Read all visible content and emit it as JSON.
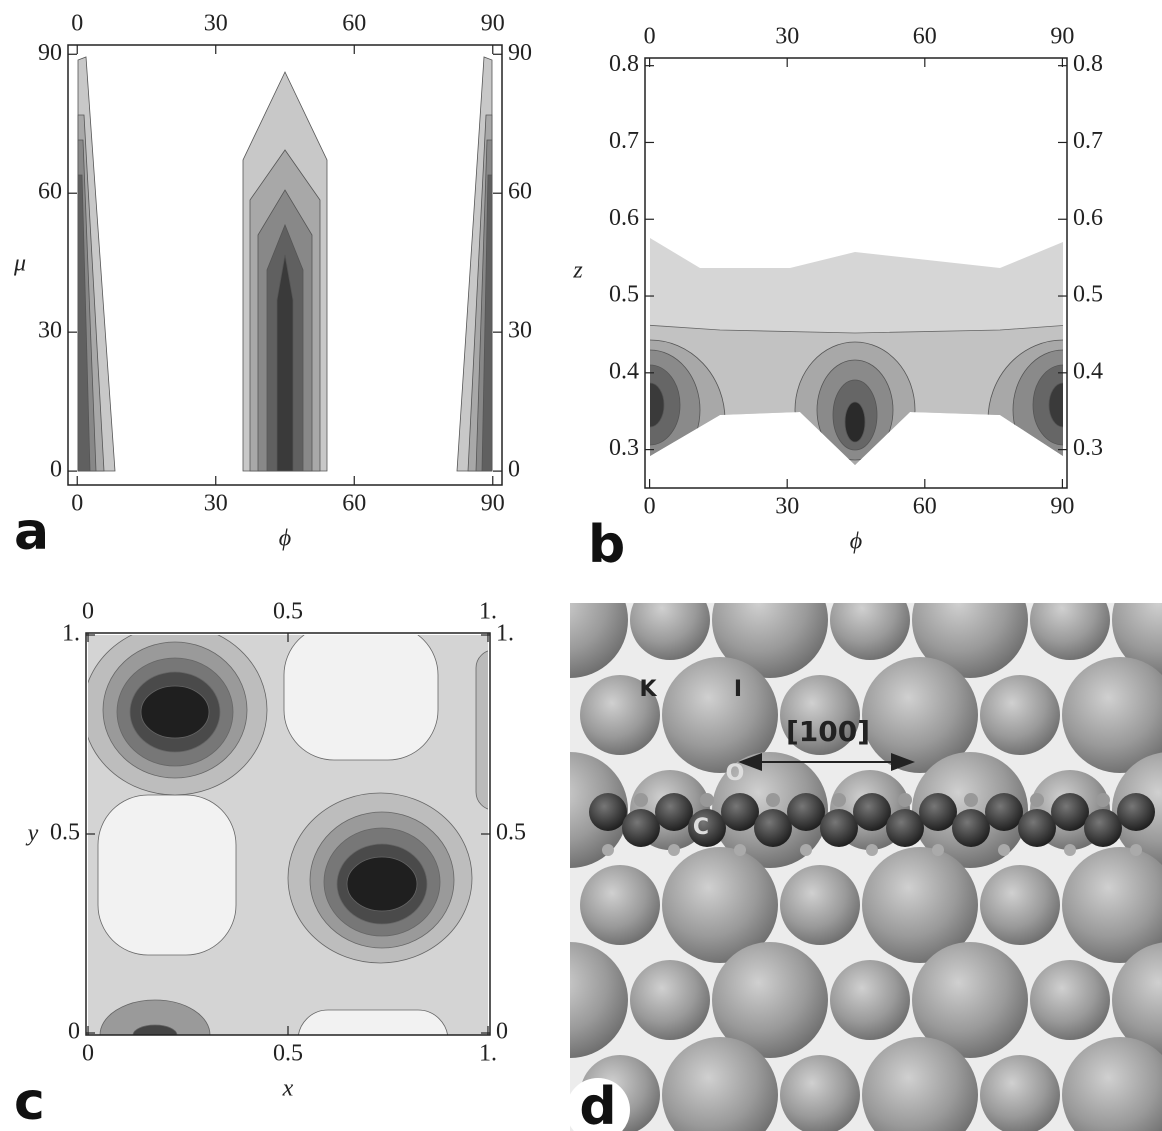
{
  "chart_data": [
    {
      "type": "contour",
      "panel_label": "a",
      "x_label": "ϕ",
      "y_label": "μ",
      "xlim": [
        -2,
        92
      ],
      "ylim": [
        -3,
        92
      ],
      "xticks": [
        0,
        30,
        60,
        90
      ],
      "yticks": [
        0,
        30,
        60,
        90
      ]
    },
    {
      "type": "contour",
      "panel_label": "b",
      "x_label": "ϕ",
      "y_label": "z",
      "xlim": [
        -1,
        91
      ],
      "ylim": [
        0.25,
        0.81
      ],
      "xticks": [
        0,
        30,
        60,
        90
      ],
      "yticks": [
        0.3,
        0.4,
        0.5,
        0.6,
        0.7,
        0.8
      ]
    },
    {
      "type": "contour",
      "panel_label": "c",
      "x_label": "x",
      "y_label": "y",
      "xlim": [
        -0.005,
        1.005
      ],
      "ylim": [
        -0.005,
        1.005
      ],
      "xticks": [
        0,
        0.5,
        {
          "value": 1,
          "label": "1."
        }
      ],
      "yticks": [
        0,
        0.5,
        {
          "value": 1,
          "label": "1."
        }
      ]
    }
  ],
  "image_panel": {
    "panel_label": "d",
    "atom_labels": [
      "K",
      "I",
      "C",
      "O"
    ],
    "direction_label": "[100]"
  }
}
